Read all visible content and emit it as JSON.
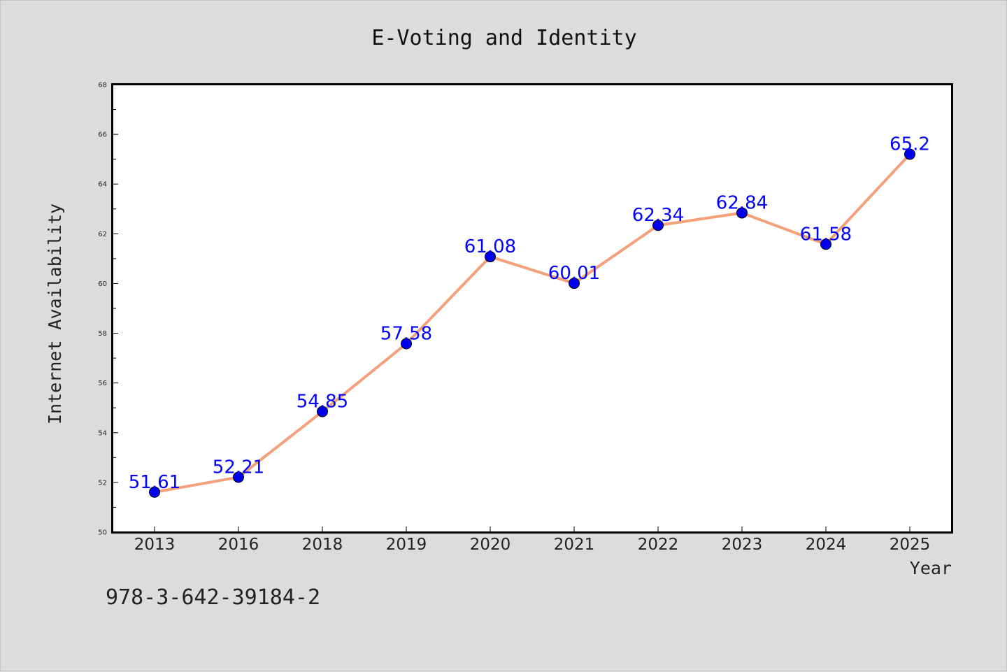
{
  "chart_data": {
    "type": "line",
    "title": "E-Voting and Identity",
    "xlabel": "Year",
    "ylabel": "Internet Availability",
    "categories": [
      "2013",
      "2016",
      "2018",
      "2019",
      "2020",
      "2021",
      "2022",
      "2023",
      "2024",
      "2025"
    ],
    "series": [
      {
        "values": [
          51.61,
          52.21,
          54.85,
          57.58,
          61.08,
          60.01,
          62.34,
          62.84,
          61.58,
          65.2
        ],
        "data_labels": [
          "51.61",
          "52.21",
          "54.85",
          "57.58",
          "61.08",
          "60.01",
          "62.34",
          "62.84",
          "61.58",
          "65.2"
        ],
        "line_color": "#f4a07a",
        "marker_color": "#0000ee"
      }
    ],
    "ylim": [
      50,
      68
    ],
    "yticks": [
      50,
      52,
      54,
      56,
      58,
      60,
      62,
      64,
      66,
      68
    ],
    "ytick_labels": [
      "50",
      "52",
      "54",
      "56",
      "58",
      "60",
      "62",
      "64",
      "66",
      "68"
    ],
    "grid": false,
    "legend": "none",
    "label_color": "#0000ff",
    "background_color": "#dcdcdc",
    "plot_background": "#ffffff"
  },
  "footnote": "978-3-642-39184-2"
}
